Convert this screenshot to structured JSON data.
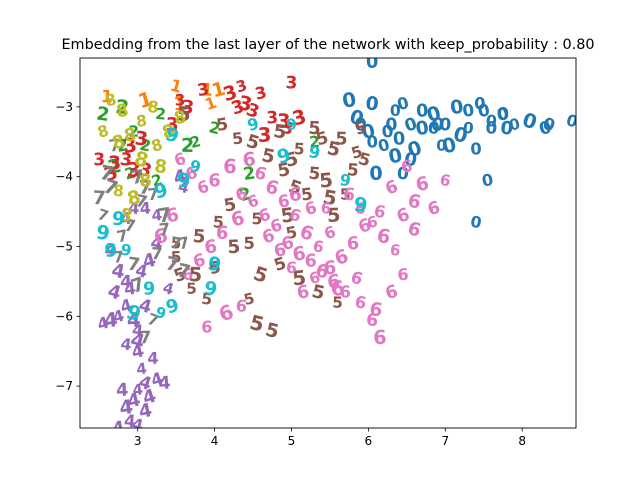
{
  "chart_data": {
    "type": "scatter",
    "title": "Embedding from the last layer of the network with keep_probability : 0.80",
    "xlabel": "",
    "ylabel": "",
    "xlim": [
      2.25,
      8.7
    ],
    "ylim": [
      -7.6,
      -2.3
    ],
    "x_ticks": [
      3,
      4,
      5,
      6,
      7,
      8
    ],
    "y_ticks": [
      -3,
      -4,
      -5,
      -6,
      -7
    ],
    "grid": false,
    "marker": "digit glyph (MNIST thumbnail)",
    "series": [
      {
        "label": "0",
        "color": "#1f77b4",
        "points": [
          [
            6.05,
            -2.35
          ],
          [
            6.45,
            -2.95
          ],
          [
            6.7,
            -3.05
          ],
          [
            6.85,
            -3.1
          ],
          [
            7.0,
            -3.25
          ],
          [
            7.15,
            -3.0
          ],
          [
            7.3,
            -3.3
          ],
          [
            7.45,
            -2.95
          ],
          [
            7.6,
            -3.2
          ],
          [
            7.75,
            -3.1
          ],
          [
            7.9,
            -3.25
          ],
          [
            8.1,
            -3.2
          ],
          [
            8.3,
            -3.3
          ],
          [
            8.65,
            -3.2
          ],
          [
            6.4,
            -3.45
          ],
          [
            6.85,
            -3.3
          ],
          [
            7.05,
            -3.55
          ],
          [
            7.4,
            -3.6
          ],
          [
            7.6,
            -3.3
          ],
          [
            6.0,
            -3.35
          ],
          [
            6.25,
            -3.35
          ],
          [
            6.6,
            -3.6
          ],
          [
            6.35,
            -3.7
          ],
          [
            6.05,
            -3.5
          ],
          [
            6.45,
            -3.95
          ],
          [
            6.55,
            -3.75
          ],
          [
            6.2,
            -3.55
          ],
          [
            6.35,
            -3.05
          ],
          [
            6.55,
            -3.25
          ],
          [
            7.8,
            -3.3
          ],
          [
            8.35,
            -3.25
          ],
          [
            5.9,
            -3.25
          ],
          [
            6.1,
            -3.95
          ],
          [
            6.3,
            -3.25
          ],
          [
            7.55,
            -4.05
          ],
          [
            7.4,
            -4.65
          ],
          [
            6.7,
            -3.3
          ],
          [
            7.2,
            -3.4
          ],
          [
            5.85,
            -3.15
          ],
          [
            6.9,
            -3.25
          ],
          [
            6.95,
            -3.55
          ],
          [
            7.3,
            -3.05
          ],
          [
            7.5,
            -3.05
          ],
          [
            6.05,
            -2.95
          ],
          [
            5.75,
            -2.9
          ],
          [
            7.75,
            -3.1
          ]
        ]
      },
      {
        "label": "1",
        "color": "#ff7f0e",
        "points": [
          [
            2.6,
            -2.85
          ],
          [
            3.1,
            -2.9
          ],
          [
            3.55,
            -2.95
          ],
          [
            3.9,
            -2.75
          ],
          [
            4.05,
            -2.75
          ],
          [
            3.5,
            -2.7
          ],
          [
            3.95,
            -2.95
          ]
        ]
      },
      {
        "label": "2",
        "color": "#2ca02c",
        "points": [
          [
            2.55,
            -3.1
          ],
          [
            2.8,
            -3.0
          ],
          [
            2.7,
            -3.85
          ],
          [
            2.9,
            -3.95
          ],
          [
            3.25,
            -4.05
          ],
          [
            3.65,
            -3.55
          ],
          [
            4.0,
            -3.3
          ],
          [
            2.95,
            -3.35
          ],
          [
            4.45,
            -3.95
          ],
          [
            4.4,
            -4.25
          ],
          [
            2.8,
            -3.55
          ],
          [
            3.1,
            -3.55
          ],
          [
            3.75,
            -3.5
          ],
          [
            3.3,
            -3.1
          ],
          [
            5.3,
            -3.5
          ]
        ]
      },
      {
        "label": "3",
        "color": "#d62728",
        "points": [
          [
            2.5,
            -3.75
          ],
          [
            2.65,
            -3.95
          ],
          [
            2.7,
            -3.8
          ],
          [
            2.9,
            -3.55
          ],
          [
            3.65,
            -3.0
          ],
          [
            3.85,
            -2.75
          ],
          [
            4.2,
            -2.8
          ],
          [
            4.35,
            -2.7
          ],
          [
            4.6,
            -2.8
          ],
          [
            4.3,
            -3.0
          ],
          [
            4.75,
            -3.15
          ],
          [
            4.9,
            -3.2
          ],
          [
            5.0,
            -2.65
          ],
          [
            5.1,
            -3.15
          ],
          [
            2.85,
            -3.75
          ],
          [
            3.1,
            -3.9
          ],
          [
            4.65,
            -3.4
          ],
          [
            4.95,
            -3.3
          ],
          [
            3.45,
            -3.25
          ],
          [
            4.4,
            -2.95
          ],
          [
            2.95,
            -3.9
          ],
          [
            3.05,
            -3.45
          ],
          [
            3.55,
            -2.9
          ],
          [
            4.5,
            -3.05
          ]
        ]
      },
      {
        "label": "4",
        "color": "#9467bd",
        "points": [
          [
            2.65,
            -5.05
          ],
          [
            2.75,
            -5.35
          ],
          [
            2.85,
            -5.5
          ],
          [
            2.7,
            -5.65
          ],
          [
            2.85,
            -5.85
          ],
          [
            2.95,
            -6.05
          ],
          [
            3.0,
            -6.2
          ],
          [
            2.85,
            -6.4
          ],
          [
            3.0,
            -6.5
          ],
          [
            3.05,
            -6.75
          ],
          [
            3.1,
            -6.95
          ],
          [
            3.25,
            -6.9
          ],
          [
            2.95,
            -7.2
          ],
          [
            3.1,
            -7.35
          ],
          [
            2.85,
            -7.3
          ],
          [
            2.9,
            -7.5
          ],
          [
            3.0,
            -7.55
          ],
          [
            2.9,
            -5.6
          ],
          [
            3.1,
            -5.85
          ],
          [
            2.75,
            -6.0
          ],
          [
            3.2,
            -6.6
          ],
          [
            3.35,
            -6.95
          ],
          [
            3.0,
            -7.05
          ],
          [
            3.15,
            -7.15
          ],
          [
            2.8,
            -7.05
          ],
          [
            3.4,
            -5.6
          ],
          [
            3.1,
            -4.45
          ],
          [
            3.25,
            -4.55
          ],
          [
            3.55,
            -4.0
          ],
          [
            3.6,
            -4.15
          ],
          [
            2.95,
            -4.45
          ],
          [
            2.85,
            -4.6
          ],
          [
            3.25,
            -4.95
          ],
          [
            2.75,
            -7.6
          ],
          [
            3.0,
            -6.35
          ],
          [
            2.65,
            -6.05
          ],
          [
            3.05,
            -5.35
          ],
          [
            2.55,
            -6.1
          ],
          [
            3.15,
            -5.2
          ]
        ]
      },
      {
        "label": "5",
        "color": "#8c564b",
        "points": [
          [
            3.6,
            -3.1
          ],
          [
            4.1,
            -3.25
          ],
          [
            4.3,
            -3.45
          ],
          [
            4.5,
            -3.5
          ],
          [
            4.7,
            -3.7
          ],
          [
            4.9,
            -3.9
          ],
          [
            5.0,
            -3.75
          ],
          [
            5.05,
            -4.15
          ],
          [
            5.2,
            -4.25
          ],
          [
            5.3,
            -3.3
          ],
          [
            5.4,
            -3.45
          ],
          [
            5.55,
            -3.6
          ],
          [
            5.65,
            -3.45
          ],
          [
            5.8,
            -3.9
          ],
          [
            5.85,
            -3.65
          ],
          [
            5.45,
            -4.05
          ],
          [
            5.5,
            -4.3
          ],
          [
            5.55,
            -4.55
          ],
          [
            5.7,
            -4.25
          ],
          [
            5.95,
            -3.75
          ],
          [
            5.0,
            -4.8
          ],
          [
            4.85,
            -5.25
          ],
          [
            5.1,
            -5.45
          ],
          [
            5.35,
            -5.65
          ],
          [
            5.6,
            -5.8
          ],
          [
            4.55,
            -4.6
          ],
          [
            4.45,
            -4.95
          ],
          [
            4.2,
            -4.4
          ],
          [
            4.05,
            -4.65
          ],
          [
            3.8,
            -4.85
          ],
          [
            3.5,
            -5.15
          ],
          [
            3.55,
            -5.4
          ],
          [
            3.7,
            -5.6
          ],
          [
            3.9,
            -5.75
          ],
          [
            4.0,
            -5.3
          ],
          [
            4.25,
            -5.0
          ],
          [
            4.6,
            -5.4
          ],
          [
            4.45,
            -5.75
          ],
          [
            4.55,
            -6.1
          ],
          [
            4.75,
            -6.2
          ],
          [
            3.75,
            -5.4
          ],
          [
            5.9,
            -3.3
          ],
          [
            3.5,
            -4.95
          ],
          [
            5.3,
            -3.95
          ],
          [
            4.95,
            -4.55
          ],
          [
            5.1,
            -3.6
          ],
          [
            4.85,
            -3.35
          ]
        ]
      },
      {
        "label": "6",
        "color": "#e377c2",
        "points": [
          [
            3.55,
            -3.75
          ],
          [
            3.7,
            -3.95
          ],
          [
            3.85,
            -4.15
          ],
          [
            4.0,
            -4.05
          ],
          [
            4.2,
            -3.85
          ],
          [
            4.35,
            -4.25
          ],
          [
            4.5,
            -4.35
          ],
          [
            4.65,
            -4.55
          ],
          [
            4.8,
            -4.7
          ],
          [
            4.95,
            -4.95
          ],
          [
            5.1,
            -5.1
          ],
          [
            5.25,
            -5.2
          ],
          [
            5.4,
            -5.35
          ],
          [
            5.55,
            -5.5
          ],
          [
            5.7,
            -5.65
          ],
          [
            5.9,
            -5.8
          ],
          [
            6.05,
            -6.05
          ],
          [
            6.15,
            -6.3
          ],
          [
            6.3,
            -5.65
          ],
          [
            6.45,
            -5.4
          ],
          [
            6.6,
            -4.35
          ],
          [
            6.7,
            -4.1
          ],
          [
            6.85,
            -4.45
          ],
          [
            7.0,
            -4.05
          ],
          [
            6.5,
            -3.85
          ],
          [
            6.3,
            -4.15
          ],
          [
            6.15,
            -4.5
          ],
          [
            5.95,
            -4.7
          ],
          [
            5.8,
            -4.95
          ],
          [
            5.65,
            -5.15
          ],
          [
            5.5,
            -5.3
          ],
          [
            5.35,
            -5.0
          ],
          [
            5.2,
            -4.8
          ],
          [
            5.05,
            -4.55
          ],
          [
            4.9,
            -4.35
          ],
          [
            4.75,
            -4.15
          ],
          [
            4.6,
            -3.95
          ],
          [
            4.45,
            -3.75
          ],
          [
            4.3,
            -4.6
          ],
          [
            4.1,
            -4.8
          ],
          [
            3.95,
            -5.0
          ],
          [
            3.8,
            -5.2
          ],
          [
            3.65,
            -5.4
          ],
          [
            3.9,
            -6.15
          ],
          [
            4.15,
            -5.95
          ],
          [
            4.35,
            -5.85
          ],
          [
            3.3,
            -4.85
          ],
          [
            3.45,
            -4.55
          ],
          [
            5.75,
            -4.25
          ],
          [
            5.9,
            -4.45
          ],
          [
            6.05,
            -4.65
          ],
          [
            6.2,
            -4.85
          ],
          [
            6.35,
            -5.05
          ],
          [
            5.5,
            -4.8
          ],
          [
            5.6,
            -5.6
          ],
          [
            5.3,
            -5.45
          ],
          [
            5.15,
            -5.65
          ],
          [
            5.0,
            -5.3
          ],
          [
            4.85,
            -5.05
          ],
          [
            4.7,
            -4.85
          ],
          [
            6.45,
            -4.55
          ],
          [
            6.1,
            -5.9
          ],
          [
            5.85,
            -5.45
          ],
          [
            6.6,
            -4.75
          ],
          [
            5.45,
            -4.45
          ],
          [
            5.25,
            -4.45
          ],
          [
            5.05,
            -4.25
          ]
        ]
      },
      {
        "label": "7",
        "color": "#7f7f7f",
        "points": [
          [
            2.5,
            -4.3
          ],
          [
            2.65,
            -4.15
          ],
          [
            2.8,
            -4.85
          ],
          [
            2.9,
            -4.7
          ],
          [
            3.05,
            -4.35
          ],
          [
            3.2,
            -4.25
          ],
          [
            3.35,
            -4.55
          ],
          [
            2.55,
            -4.55
          ],
          [
            2.7,
            -3.55
          ],
          [
            2.6,
            -3.95
          ],
          [
            3.5,
            -4.95
          ],
          [
            3.0,
            -4.0
          ],
          [
            3.1,
            -4.15
          ],
          [
            3.25,
            -5.1
          ],
          [
            3.45,
            -5.25
          ],
          [
            3.6,
            -5.35
          ],
          [
            2.95,
            -5.25
          ],
          [
            3.0,
            -5.55
          ],
          [
            3.2,
            -6.05
          ],
          [
            3.1,
            -6.3
          ],
          [
            2.75,
            -5.15
          ],
          [
            3.35,
            -4.75
          ],
          [
            3.6,
            -4.95
          ]
        ]
      },
      {
        "label": "8",
        "color": "#bcbd22",
        "points": [
          [
            2.65,
            -2.9
          ],
          [
            2.8,
            -3.05
          ],
          [
            3.05,
            -3.2
          ],
          [
            3.2,
            -3.0
          ],
          [
            3.25,
            -3.55
          ],
          [
            3.4,
            -3.35
          ],
          [
            2.9,
            -3.4
          ],
          [
            2.75,
            -3.5
          ],
          [
            3.05,
            -3.75
          ],
          [
            3.1,
            -4.05
          ],
          [
            2.75,
            -4.2
          ],
          [
            2.85,
            -4.55
          ],
          [
            3.55,
            -3.15
          ],
          [
            2.55,
            -3.35
          ],
          [
            3.3,
            -3.85
          ],
          [
            2.95,
            -4.3
          ]
        ]
      },
      {
        "label": "9",
        "color": "#17becf",
        "points": [
          [
            2.55,
            -4.8
          ],
          [
            2.65,
            -5.05
          ],
          [
            2.75,
            -4.6
          ],
          [
            3.45,
            -3.4
          ],
          [
            3.6,
            -4.05
          ],
          [
            3.95,
            -5.6
          ],
          [
            3.3,
            -5.95
          ],
          [
            3.45,
            -5.85
          ],
          [
            2.95,
            -5.95
          ],
          [
            5.0,
            -3.25
          ],
          [
            5.3,
            -3.65
          ],
          [
            5.9,
            -4.4
          ],
          [
            4.5,
            -3.25
          ],
          [
            3.75,
            -3.85
          ],
          [
            3.3,
            -4.2
          ],
          [
            4.0,
            -5.25
          ],
          [
            3.15,
            -5.6
          ],
          [
            2.85,
            -5.05
          ],
          [
            5.7,
            -4.05
          ],
          [
            4.9,
            -3.7
          ]
        ]
      }
    ]
  }
}
